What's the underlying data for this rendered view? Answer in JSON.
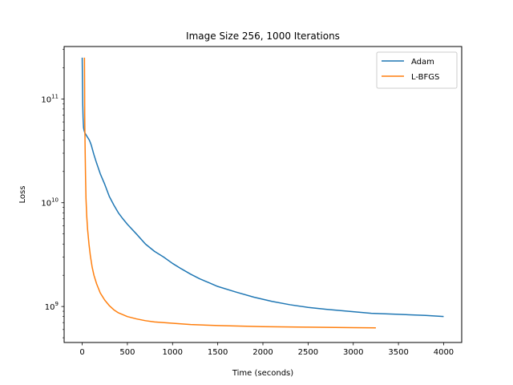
{
  "chart_data": {
    "type": "line",
    "title": "Image Size 256, 1000 Iterations",
    "xlabel": "Time (seconds)",
    "ylabel": "Loss",
    "xlim": [
      -200,
      4200
    ],
    "ylim": [
      450000000,
      320000000000
    ],
    "yscale": "log",
    "x_ticks": [
      0,
      500,
      1000,
      1500,
      2000,
      2500,
      3000,
      3500,
      4000
    ],
    "y_ticks": [
      {
        "value": 1000000000,
        "base": "10",
        "exp": "9"
      },
      {
        "value": 10000000000,
        "base": "10",
        "exp": "10"
      },
      {
        "value": 100000000000,
        "base": "10",
        "exp": "11"
      }
    ],
    "legend_position": "top-right",
    "grid": false,
    "series": [
      {
        "name": "Adam",
        "color": "#1f77b4",
        "x": [
          0,
          3,
          6,
          10,
          15,
          20,
          30,
          50,
          80,
          100,
          130,
          160,
          200,
          250,
          300,
          350,
          400,
          450,
          500,
          600,
          700,
          800,
          900,
          1000,
          1100,
          1200,
          1300,
          1400,
          1500,
          1700,
          1900,
          2100,
          2300,
          2500,
          2700,
          3000,
          3200,
          3500,
          3800,
          4000
        ],
        "y": [
          250000000000,
          150000000000,
          90000000000,
          65000000000,
          53000000000,
          50000000000,
          47000000000,
          44000000000,
          40000000000,
          36000000000,
          29000000000,
          24000000000,
          19000000000,
          15000000000,
          11500000000,
          9500000000,
          8000000000,
          7000000000,
          6200000000,
          5000000000,
          4000000000,
          3400000000,
          3000000000,
          2600000000,
          2300000000,
          2050000000,
          1850000000,
          1700000000,
          1560000000,
          1380000000,
          1230000000,
          1120000000,
          1040000000,
          980000000,
          940000000,
          890000000,
          860000000,
          840000000,
          820000000,
          800000000
        ]
      },
      {
        "name": "L-BFGS",
        "color": "#ff7f0e",
        "x": [
          25,
          27,
          28,
          30,
          33,
          37,
          42,
          50,
          60,
          75,
          90,
          110,
          130,
          160,
          200,
          250,
          300,
          350,
          400,
          500,
          600,
          700,
          800,
          1000,
          1200,
          1500,
          2000,
          2500,
          3000,
          3250
        ],
        "y": [
          250000000000,
          120000000000,
          70000000000,
          48000000000,
          30000000000,
          18000000000,
          11000000000,
          7500000000,
          5500000000,
          4000000000,
          3100000000,
          2400000000,
          2000000000,
          1650000000,
          1350000000,
          1150000000,
          1020000000,
          930000000,
          870000000,
          800000000,
          760000000,
          730000000,
          710000000,
          690000000,
          670000000,
          655000000,
          640000000,
          632000000,
          626000000,
          622000000
        ]
      }
    ]
  }
}
